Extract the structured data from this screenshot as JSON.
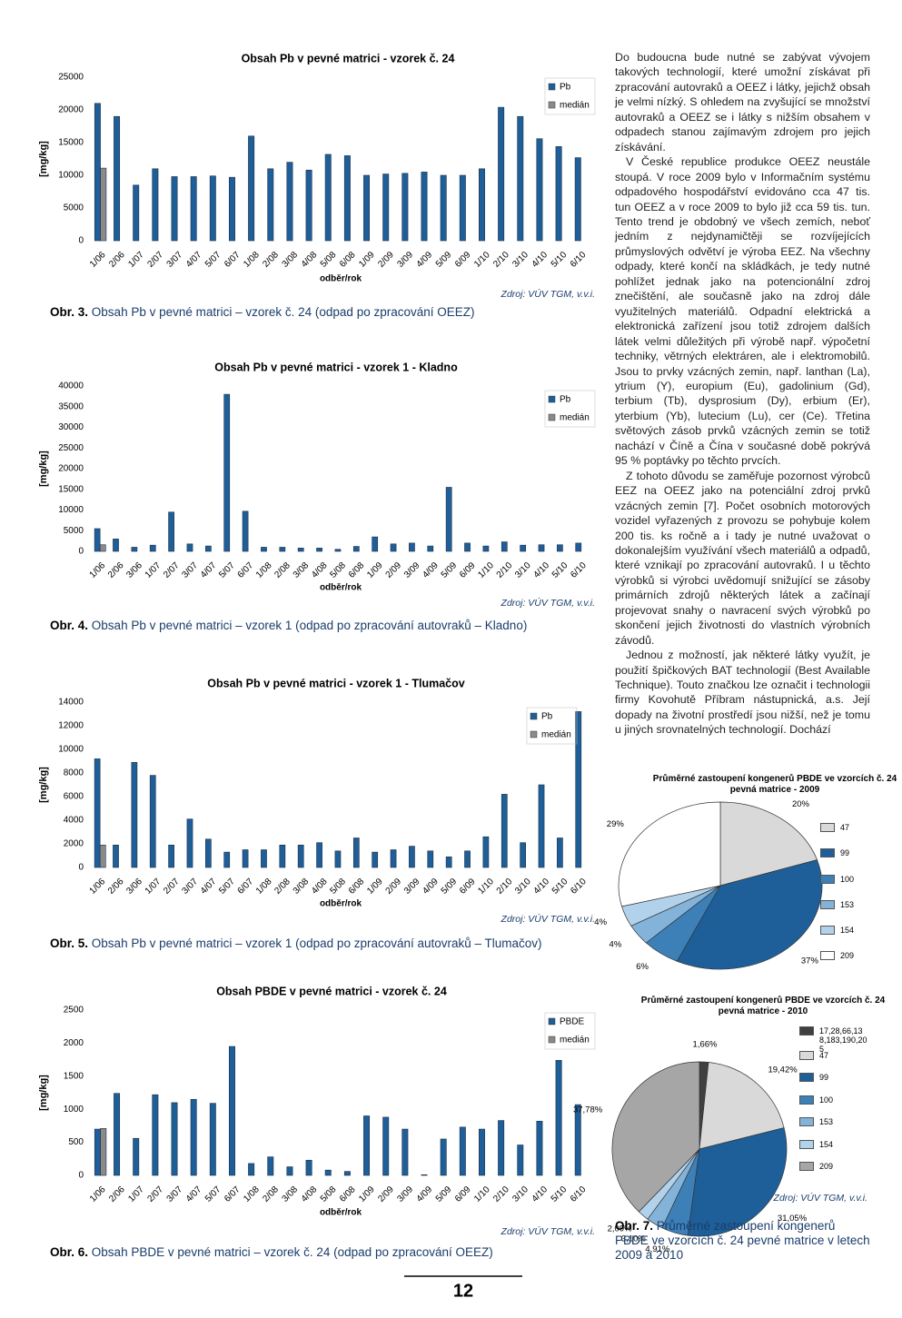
{
  "chart_data": [
    {
      "type": "bar",
      "title": "Obsah Pb v pevné matrici - vzorek č. 24",
      "x_label": "odběr/rok",
      "y_label": "[mg/kg]",
      "categories": [
        "1/06",
        "2/06",
        "1/07",
        "2/07",
        "3/07",
        "4/07",
        "5/07",
        "6/07",
        "1/08",
        "2/08",
        "3/08",
        "4/08",
        "5/08",
        "6/08",
        "1/09",
        "2/09",
        "3/09",
        "4/09",
        "5/09",
        "6/09",
        "1/10",
        "2/10",
        "3/10",
        "4/10",
        "5/10",
        "6/10"
      ],
      "series": [
        {
          "name": "Pb",
          "color": "#1f5f99",
          "values": [
            21000,
            19000,
            8500,
            11000,
            9800,
            9800,
            9900,
            9700,
            16000,
            11000,
            12000,
            10800,
            13200,
            13000,
            10000,
            10200,
            10300,
            10500,
            10000,
            10000,
            11000,
            20400,
            19000,
            15600,
            14400,
            12700
          ]
        },
        {
          "name": "medián",
          "color": "#8a8a8a",
          "values": [
            11100,
            null,
            null,
            null,
            null,
            null,
            null,
            null,
            null,
            null,
            null,
            null,
            null,
            null,
            null,
            null,
            null,
            null,
            null,
            null,
            null,
            null,
            null,
            null,
            null,
            null
          ]
        }
      ],
      "ylim": [
        0,
        25000
      ],
      "yticks": [
        0,
        5000,
        10000,
        15000,
        20000,
        25000
      ],
      "source": "Zdroj: VÚV TGM, v.v.i."
    },
    {
      "type": "bar",
      "title": "Obsah Pb v pevné matrici - vzorek 1 - Kladno",
      "x_label": "odběr/rok",
      "y_label": "[mg/kg]",
      "categories": [
        "1/06",
        "2/06",
        "3/06",
        "1/07",
        "2/07",
        "3/07",
        "4/07",
        "5/07",
        "6/07",
        "1/08",
        "2/08",
        "3/08",
        "4/08",
        "5/08",
        "6/08",
        "1/09",
        "2/09",
        "3/09",
        "4/09",
        "5/09",
        "6/09",
        "1/10",
        "2/10",
        "3/10",
        "4/10",
        "5/10",
        "6/10"
      ],
      "series": [
        {
          "name": "Pb",
          "color": "#1f5f99",
          "values": [
            5500,
            3000,
            1000,
            1500,
            9500,
            1800,
            1300,
            38000,
            9700,
            1000,
            1000,
            800,
            800,
            500,
            1200,
            3500,
            1800,
            2000,
            1300,
            15500,
            2000,
            1300,
            2300,
            1500,
            1600,
            1600,
            2000
          ]
        },
        {
          "name": "medián",
          "color": "#8a8a8a",
          "values": [
            1600,
            null,
            null,
            null,
            null,
            null,
            null,
            null,
            null,
            null,
            null,
            null,
            null,
            null,
            null,
            null,
            null,
            null,
            null,
            null,
            null,
            null,
            null,
            null,
            null,
            null,
            null
          ]
        }
      ],
      "ylim": [
        0,
        40000
      ],
      "yticks": [
        0,
        5000,
        10000,
        15000,
        20000,
        25000,
        30000,
        35000,
        40000
      ],
      "source": "Zdroj: VÚV TGM, v.v.i."
    },
    {
      "type": "bar",
      "title": "Obsah Pb v pevné matrici - vzorek 1 - Tlumačov",
      "x_label": "odběr/rok",
      "y_label": "[mg/kg]",
      "categories": [
        "1/06",
        "2/06",
        "3/06",
        "1/07",
        "2/07",
        "3/07",
        "4/07",
        "5/07",
        "6/07",
        "1/08",
        "2/08",
        "3/08",
        "4/08",
        "5/08",
        "6/08",
        "1/09",
        "2/09",
        "3/09",
        "4/09",
        "5/09",
        "6/09",
        "1/10",
        "2/10",
        "3/10",
        "4/10",
        "5/10",
        "6/10"
      ],
      "series": [
        {
          "name": "Pb",
          "color": "#1f5f99",
          "values": [
            9200,
            1900,
            8900,
            7800,
            1900,
            4100,
            2400,
            1300,
            1500,
            1500,
            1900,
            1900,
            2100,
            1400,
            2500,
            1300,
            1500,
            1800,
            1400,
            900,
            1400,
            2600,
            6200,
            2100,
            7000,
            2500,
            13200
          ]
        },
        {
          "name": "medián",
          "color": "#8a8a8a",
          "values": [
            1900,
            null,
            null,
            null,
            null,
            null,
            null,
            null,
            null,
            null,
            null,
            null,
            null,
            null,
            null,
            null,
            null,
            null,
            null,
            null,
            null,
            null,
            null,
            null,
            null,
            null,
            null
          ]
        }
      ],
      "ylim": [
        0,
        14000
      ],
      "yticks": [
        0,
        2000,
        4000,
        6000,
        8000,
        10000,
        12000,
        14000
      ],
      "source": "Zdroj: VÚV TGM, v.v.i."
    },
    {
      "type": "bar",
      "title": "Obsah PBDE v pevné matrici - vzorek č. 24",
      "x_label": "odběr/rok",
      "y_label": "[mg/kg]",
      "categories": [
        "1/06",
        "2/06",
        "1/07",
        "2/07",
        "3/07",
        "4/07",
        "5/07",
        "6/07",
        "1/08",
        "2/08",
        "3/08",
        "4/08",
        "5/08",
        "6/08",
        "1/09",
        "2/09",
        "3/09",
        "4/09",
        "5/09",
        "6/09",
        "1/10",
        "2/10",
        "3/10",
        "4/10",
        "5/10",
        "6/10"
      ],
      "series": [
        {
          "name": "PBDE",
          "color": "#1f5f99",
          "values": [
            700,
            1240,
            560,
            1220,
            1100,
            1150,
            1090,
            1950,
            180,
            280,
            130,
            230,
            80,
            60,
            900,
            880,
            700,
            10,
            550,
            730,
            700,
            830,
            460,
            820,
            1740,
            1070
          ]
        },
        {
          "name": "medián",
          "color": "#8a8a8a",
          "values": [
            710,
            null,
            null,
            null,
            null,
            null,
            null,
            null,
            null,
            null,
            null,
            null,
            null,
            null,
            null,
            null,
            null,
            null,
            null,
            null,
            null,
            null,
            null,
            null,
            null,
            null
          ]
        }
      ],
      "ylim": [
        0,
        2500
      ],
      "yticks": [
        0,
        500,
        1000,
        1500,
        2000,
        2500
      ],
      "source": "Zdroj: VÚV TGM, v.v.i."
    },
    {
      "type": "pie",
      "title": "Průměrné zastoupení kongenerů PBDE ve vzorcích č. 24 pevná matrice - 2009",
      "categories": [
        "47",
        "99",
        "100",
        "153",
        "154",
        "209"
      ],
      "values": [
        20,
        37,
        6,
        4,
        4,
        29
      ],
      "value_labels": [
        "20%",
        "37%",
        "6%",
        "4%",
        "4%",
        "29%"
      ],
      "colors": [
        "#d9d9d9",
        "#1f5f99",
        "#3d80b8",
        "#84b3da",
        "#b2d2ec",
        "#ffffff"
      ]
    },
    {
      "type": "pie",
      "title": "Průměrné zastoupení kongenerů PBDE ve vzorcích č. 24 pevná matrice - 2010",
      "categories": [
        "17,28,66,138,183,190,205",
        "47",
        "99",
        "100",
        "153",
        "154",
        "209"
      ],
      "values": [
        1.66,
        19.42,
        31.05,
        4.91,
        3.1,
        2.09,
        37.78
      ],
      "value_labels": [
        "1,66%",
        "19,42%",
        "31,05%",
        "4,91%",
        "3,10%",
        "2,09%",
        "37,78%"
      ],
      "colors": [
        "#404040",
        "#d9d9d9",
        "#1f5f99",
        "#3d80b8",
        "#84b3da",
        "#b2d2ec",
        "#a6a6a6"
      ],
      "source": "Zdroj: VÚV TGM, v.v.i."
    }
  ],
  "captions": [
    {
      "label": "Obr. 3.",
      "text": "Obsah Pb v pevné matrici – vzorek č. 24 (odpad po zpracování OEEZ)"
    },
    {
      "label": "Obr. 4.",
      "text": "Obsah Pb v pevné matrici – vzorek 1 (odpad po zpracování autovraků – Kladno)"
    },
    {
      "label": "Obr. 5.",
      "text": "Obsah Pb v pevné matrici – vzorek 1 (odpad po zpracování autovraků – Tlumačov)"
    },
    {
      "label": "Obr. 6.",
      "text": "Obsah PBDE v pevné matrici – vzorek č. 24 (odpad po zpracování OEEZ)"
    },
    {
      "label": "Obr. 7.",
      "text": "Průměrné zastoupení kongenerů PBDE ve vzorcích č. 24 pevné matrice v letech 2009 a 2010"
    }
  ],
  "paragraphs": [
    "Do budoucna bude nutné se zabývat vývojem takových technologií, které umožní získávat při zpracování autovraků a OEEZ i látky, jejichž obsah je velmi nízký. S ohledem na zvyšující se množství autovraků a OEEZ se i látky s nižším obsahem v odpadech stanou zajímavým zdrojem pro jejich získávání.",
    "V České republice produkce OEEZ neustále stoupá. V roce 2009 bylo v Informačním systému odpadového hospodářství evidováno cca 47 tis. tun OEEZ a v roce 2009 to bylo již cca 59 tis. tun. Tento trend je obdobný ve všech zemích, neboť jedním z nejdynamičtěji se rozvíjejících průmyslových odvětví je výroba EEZ. Na všechny odpady, které končí na skládkách, je tedy nutné pohlížet jednak jako na potencionální zdroj znečištění, ale současně jako na zdroj dále využitelných materiálů. Odpadní elektrická a elektronická zařízení jsou totiž zdrojem dalších látek velmi důležitých při výrobě např. výpočetní techniky, větrných elektráren, ale i elektromobilů. Jsou to prvky vzácných zemin, např. lanthan (La), ytrium (Y), europium (Eu), gadolinium (Gd), terbium (Tb), dysprosium (Dy), erbium (Er), yterbium (Yb), lutecium (Lu), cer (Ce). Třetina světových zásob prvků vzácných zemin se totiž nachází v Číně a Čína v současné době pokrývá 95 % poptávky po těchto prvcích.",
    "Z tohoto důvodu se zaměřuje pozornost výrobců EEZ na OEEZ jako na potenciální zdroj prvků vzácných zemin [7]. Počet osobních motorových vozidel vyřazených z provozu se pohybuje kolem 200 tis. ks ročně a i tady je nutné uvažovat o dokonalejším využívání všech materiálů a odpadů, které vznikají po zpracování autovraků. I u těchto výrobků si výrobci uvědomují snižující se zásoby primárních zdrojů některých látek a začínají projevovat snahy o navracení svých výrobků po skončení jejich životnosti do vlastních výrobních závodů.",
    "Jednou z možností, jak některé látky využít, je použití špičkových BAT technologií (Best Available Technique). Touto značkou lze označit i technologii firmy Kovohutě Příbram nástupnická, a.s. Její dopady na životní prostředí jsou nižší, než je tomu u jiných srovnatelných technologií. Dochází"
  ],
  "page_number": "12"
}
